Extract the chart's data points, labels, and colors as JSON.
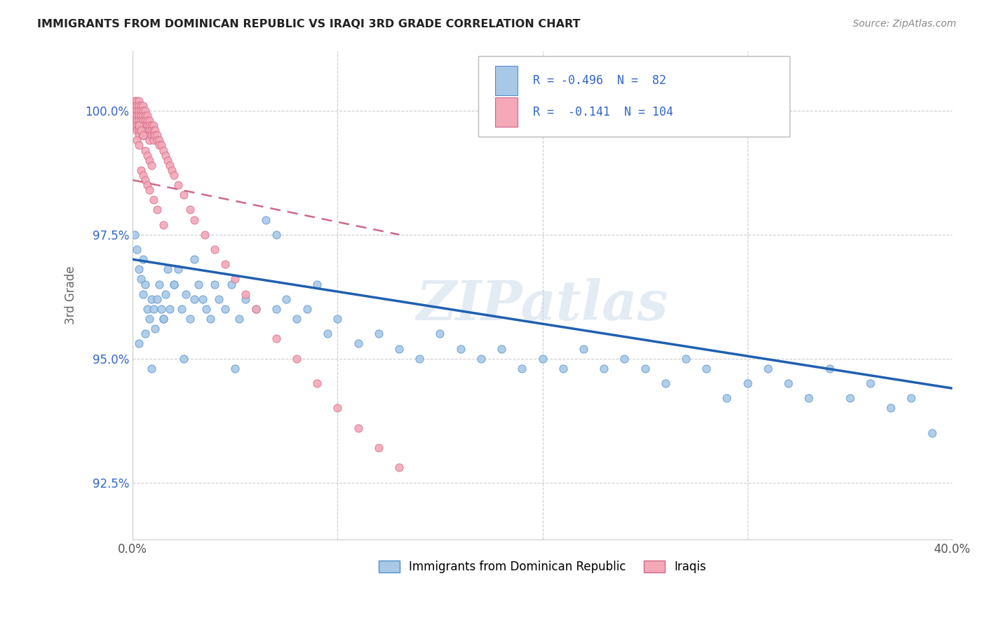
{
  "title": "IMMIGRANTS FROM DOMINICAN REPUBLIC VS IRAQI 3RD GRADE CORRELATION CHART",
  "source": "Source: ZipAtlas.com",
  "ylabel": "3rd Grade",
  "ytick_values": [
    0.925,
    0.95,
    0.975,
    1.0
  ],
  "xmin": 0.0,
  "xmax": 0.4,
  "ymin": 0.9135,
  "ymax": 1.012,
  "blue_color": "#A8C8E8",
  "pink_color": "#F4A8B8",
  "blue_edge_color": "#5090C8",
  "pink_edge_color": "#D06888",
  "blue_line_color": "#2060B0",
  "pink_line_color": "#D06888",
  "text_color": "#3366CC",
  "watermark": "ZIPatlas",
  "blue_N": 82,
  "pink_N": 104,
  "blue_R": -0.496,
  "pink_R": -0.141,
  "blue_scatter_x": [
    0.001,
    0.002,
    0.003,
    0.004,
    0.005,
    0.005,
    0.006,
    0.007,
    0.008,
    0.009,
    0.01,
    0.011,
    0.012,
    0.013,
    0.014,
    0.015,
    0.016,
    0.017,
    0.018,
    0.02,
    0.022,
    0.024,
    0.026,
    0.028,
    0.03,
    0.032,
    0.034,
    0.036,
    0.038,
    0.04,
    0.042,
    0.045,
    0.048,
    0.052,
    0.055,
    0.06,
    0.065,
    0.07,
    0.075,
    0.08,
    0.085,
    0.09,
    0.095,
    0.1,
    0.11,
    0.12,
    0.13,
    0.14,
    0.15,
    0.16,
    0.17,
    0.18,
    0.19,
    0.2,
    0.21,
    0.22,
    0.23,
    0.24,
    0.25,
    0.26,
    0.27,
    0.28,
    0.29,
    0.3,
    0.31,
    0.32,
    0.33,
    0.34,
    0.35,
    0.36,
    0.37,
    0.38,
    0.39,
    0.003,
    0.006,
    0.009,
    0.015,
    0.02,
    0.025,
    0.03,
    0.05,
    0.07
  ],
  "blue_scatter_y": [
    0.975,
    0.972,
    0.968,
    0.966,
    0.97,
    0.963,
    0.965,
    0.96,
    0.958,
    0.962,
    0.96,
    0.956,
    0.962,
    0.965,
    0.96,
    0.958,
    0.963,
    0.968,
    0.96,
    0.965,
    0.968,
    0.96,
    0.963,
    0.958,
    0.97,
    0.965,
    0.962,
    0.96,
    0.958,
    0.965,
    0.962,
    0.96,
    0.965,
    0.958,
    0.962,
    0.96,
    0.978,
    0.975,
    0.962,
    0.958,
    0.96,
    0.965,
    0.955,
    0.958,
    0.953,
    0.955,
    0.952,
    0.95,
    0.955,
    0.952,
    0.95,
    0.952,
    0.948,
    0.95,
    0.948,
    0.952,
    0.948,
    0.95,
    0.948,
    0.945,
    0.95,
    0.948,
    0.942,
    0.945,
    0.948,
    0.945,
    0.942,
    0.948,
    0.942,
    0.945,
    0.94,
    0.942,
    0.935,
    0.953,
    0.955,
    0.948,
    0.958,
    0.965,
    0.95,
    0.962,
    0.948,
    0.96
  ],
  "pink_scatter_x": [
    0.001,
    0.001,
    0.001,
    0.001,
    0.001,
    0.001,
    0.002,
    0.002,
    0.002,
    0.002,
    0.002,
    0.002,
    0.002,
    0.003,
    0.003,
    0.003,
    0.003,
    0.003,
    0.003,
    0.003,
    0.003,
    0.004,
    0.004,
    0.004,
    0.004,
    0.004,
    0.004,
    0.005,
    0.005,
    0.005,
    0.005,
    0.005,
    0.005,
    0.005,
    0.006,
    0.006,
    0.006,
    0.006,
    0.006,
    0.006,
    0.007,
    0.007,
    0.007,
    0.007,
    0.007,
    0.008,
    0.008,
    0.008,
    0.008,
    0.008,
    0.009,
    0.009,
    0.009,
    0.01,
    0.01,
    0.01,
    0.01,
    0.011,
    0.011,
    0.012,
    0.012,
    0.013,
    0.013,
    0.014,
    0.015,
    0.016,
    0.017,
    0.018,
    0.019,
    0.02,
    0.022,
    0.025,
    0.028,
    0.03,
    0.035,
    0.04,
    0.045,
    0.05,
    0.055,
    0.06,
    0.07,
    0.08,
    0.09,
    0.1,
    0.11,
    0.12,
    0.13,
    0.003,
    0.004,
    0.005,
    0.002,
    0.003,
    0.006,
    0.007,
    0.008,
    0.009,
    0.004,
    0.005,
    0.006,
    0.007,
    0.008,
    0.01,
    0.012,
    0.015
  ],
  "pink_scatter_y": [
    1.002,
    1.001,
    1.0,
    0.999,
    0.998,
    0.997,
    1.002,
    1.001,
    1.0,
    0.999,
    0.998,
    0.997,
    0.996,
    1.002,
    1.001,
    1.0,
    0.999,
    0.998,
    0.997,
    0.996,
    0.995,
    1.001,
    1.0,
    0.999,
    0.998,
    0.997,
    0.996,
    1.001,
    1.0,
    0.999,
    0.998,
    0.997,
    0.996,
    0.995,
    1.0,
    0.999,
    0.998,
    0.997,
    0.996,
    0.995,
    0.999,
    0.998,
    0.997,
    0.996,
    0.995,
    0.998,
    0.997,
    0.996,
    0.995,
    0.994,
    0.997,
    0.996,
    0.995,
    0.997,
    0.996,
    0.995,
    0.994,
    0.996,
    0.995,
    0.995,
    0.994,
    0.994,
    0.993,
    0.993,
    0.992,
    0.991,
    0.99,
    0.989,
    0.988,
    0.987,
    0.985,
    0.983,
    0.98,
    0.978,
    0.975,
    0.972,
    0.969,
    0.966,
    0.963,
    0.96,
    0.954,
    0.95,
    0.945,
    0.94,
    0.936,
    0.932,
    0.928,
    0.997,
    0.996,
    0.995,
    0.994,
    0.993,
    0.992,
    0.991,
    0.99,
    0.989,
    0.988,
    0.987,
    0.986,
    0.985,
    0.984,
    0.982,
    0.98,
    0.977
  ],
  "blue_trend_x": [
    0.0,
    0.4
  ],
  "blue_trend_y": [
    0.97,
    0.944
  ],
  "pink_trend_x": [
    0.0,
    0.13
  ],
  "pink_trend_y": [
    0.986,
    0.975
  ]
}
